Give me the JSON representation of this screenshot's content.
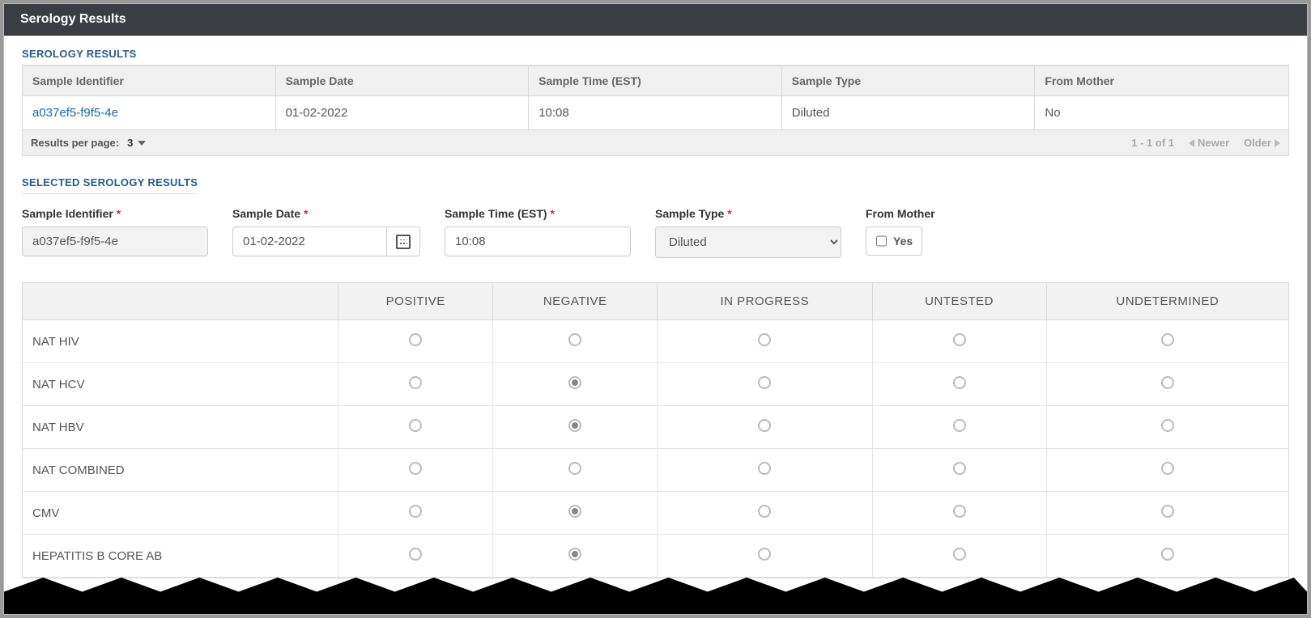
{
  "header": {
    "title": "Serology Results"
  },
  "section1": {
    "title": "SEROLOGY RESULTS",
    "columns": {
      "c0": "Sample Identifier",
      "c1": "Sample Date",
      "c2": "Sample Time (EST)",
      "c3": "Sample Type",
      "c4": "From Mother"
    },
    "row": {
      "id": "a037ef5-f9f5-4e",
      "date": "01-02-2022",
      "time": "10:08",
      "type": "Diluted",
      "mother": "No"
    },
    "footer": {
      "perpage_label": "Results per page:",
      "perpage_value": "3",
      "range": "1 - 1 of 1",
      "newer": "Newer",
      "older": "Older"
    }
  },
  "section2": {
    "title": "SELECTED SEROLOGY RESULTS",
    "labels": {
      "id": "Sample Identifier",
      "date": "Sample Date",
      "time": "Sample Time (EST)",
      "type": "Sample Type",
      "mother": "From Mother",
      "yes": "Yes"
    },
    "values": {
      "id": "a037ef5-f9f5-4e",
      "date": "01-02-2022",
      "time": "10:08",
      "type": "Diluted"
    }
  },
  "results": {
    "columns": {
      "c0": "",
      "c1": "POSITIVE",
      "c2": "NEGATIVE",
      "c3": "IN PROGRESS",
      "c4": "UNTESTED",
      "c5": "UNDETERMINED"
    },
    "rows": [
      {
        "label": "NAT HIV",
        "selected": null
      },
      {
        "label": "NAT HCV",
        "selected": 1
      },
      {
        "label": "NAT HBV",
        "selected": 1
      },
      {
        "label": "NAT COMBINED",
        "selected": null
      },
      {
        "label": "CMV",
        "selected": 1
      },
      {
        "label": "HEPATITIS B CORE AB",
        "selected": 1
      }
    ]
  }
}
